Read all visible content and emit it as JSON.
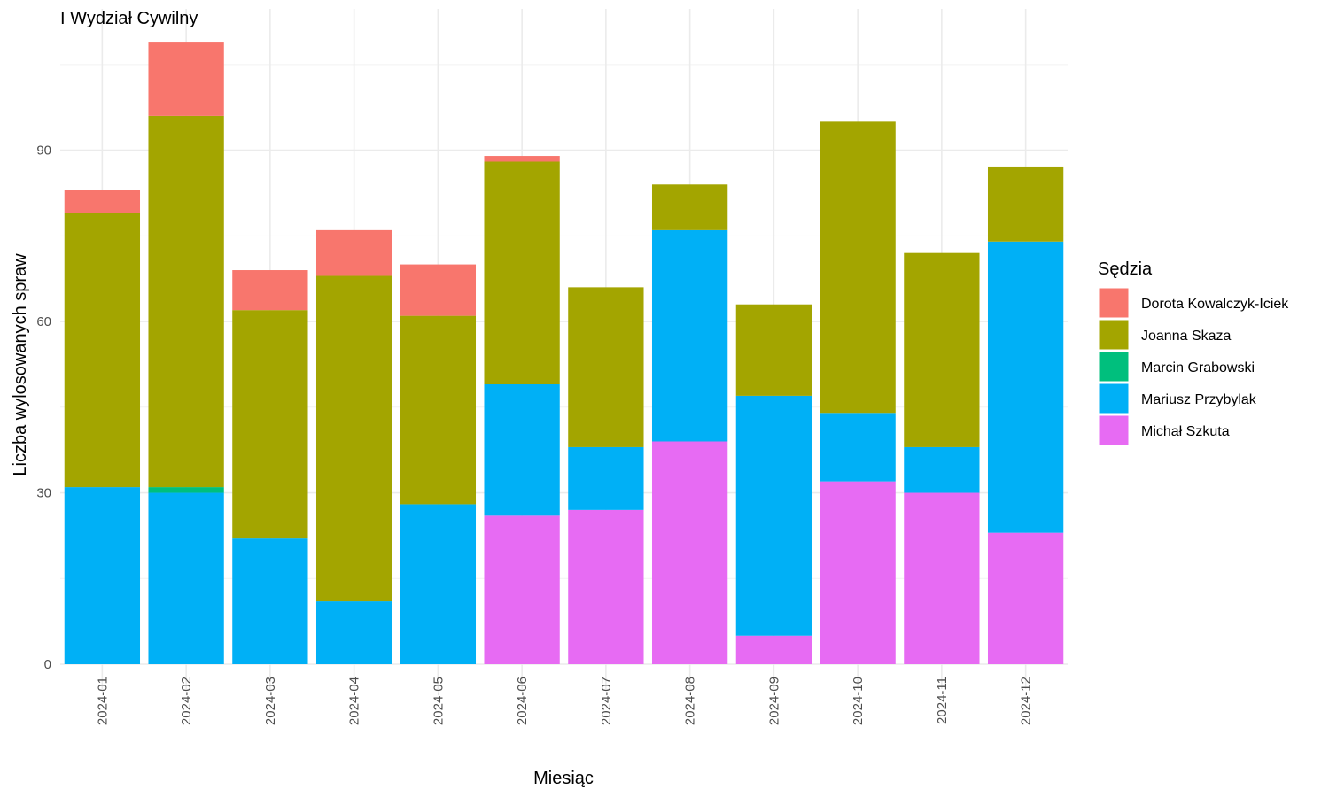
{
  "chart_data": {
    "type": "bar",
    "stacked": true,
    "title": "I Wydział Cywilny",
    "xlabel": "Miesiąc",
    "ylabel": "Liczba wylosowanych spraw",
    "ylim": [
      0,
      112
    ],
    "yticks": [
      0,
      30,
      60,
      90
    ],
    "grid": true,
    "legend_title": "Sędzia",
    "legend_position": "right",
    "categories": [
      "2024-01",
      "2024-02",
      "2024-03",
      "2024-04",
      "2024-05",
      "2024-06",
      "2024-07",
      "2024-08",
      "2024-09",
      "2024-10",
      "2024-11",
      "2024-12"
    ],
    "series": [
      {
        "name": "Dorota Kowalczyk-Iciek",
        "color": "#F8766D",
        "values": [
          4,
          13,
          7,
          8,
          9,
          1,
          0,
          0,
          0,
          0,
          0,
          0
        ]
      },
      {
        "name": "Joanna Skaza",
        "color": "#A3A500",
        "values": [
          48,
          65,
          40,
          57,
          33,
          39,
          28,
          8,
          16,
          51,
          34,
          13
        ]
      },
      {
        "name": "Marcin Grabowski",
        "color": "#00BF7D",
        "values": [
          0,
          1,
          0,
          0,
          0,
          0,
          0,
          0,
          0,
          0,
          0,
          0
        ]
      },
      {
        "name": "Mariusz Przybylak",
        "color": "#00B0F6",
        "values": [
          31,
          30,
          22,
          11,
          28,
          23,
          11,
          37,
          42,
          12,
          8,
          51
        ]
      },
      {
        "name": "Michał Szkuta",
        "color": "#E76BF3",
        "values": [
          0,
          0,
          0,
          0,
          0,
          26,
          27,
          39,
          5,
          32,
          30,
          23
        ]
      }
    ]
  }
}
